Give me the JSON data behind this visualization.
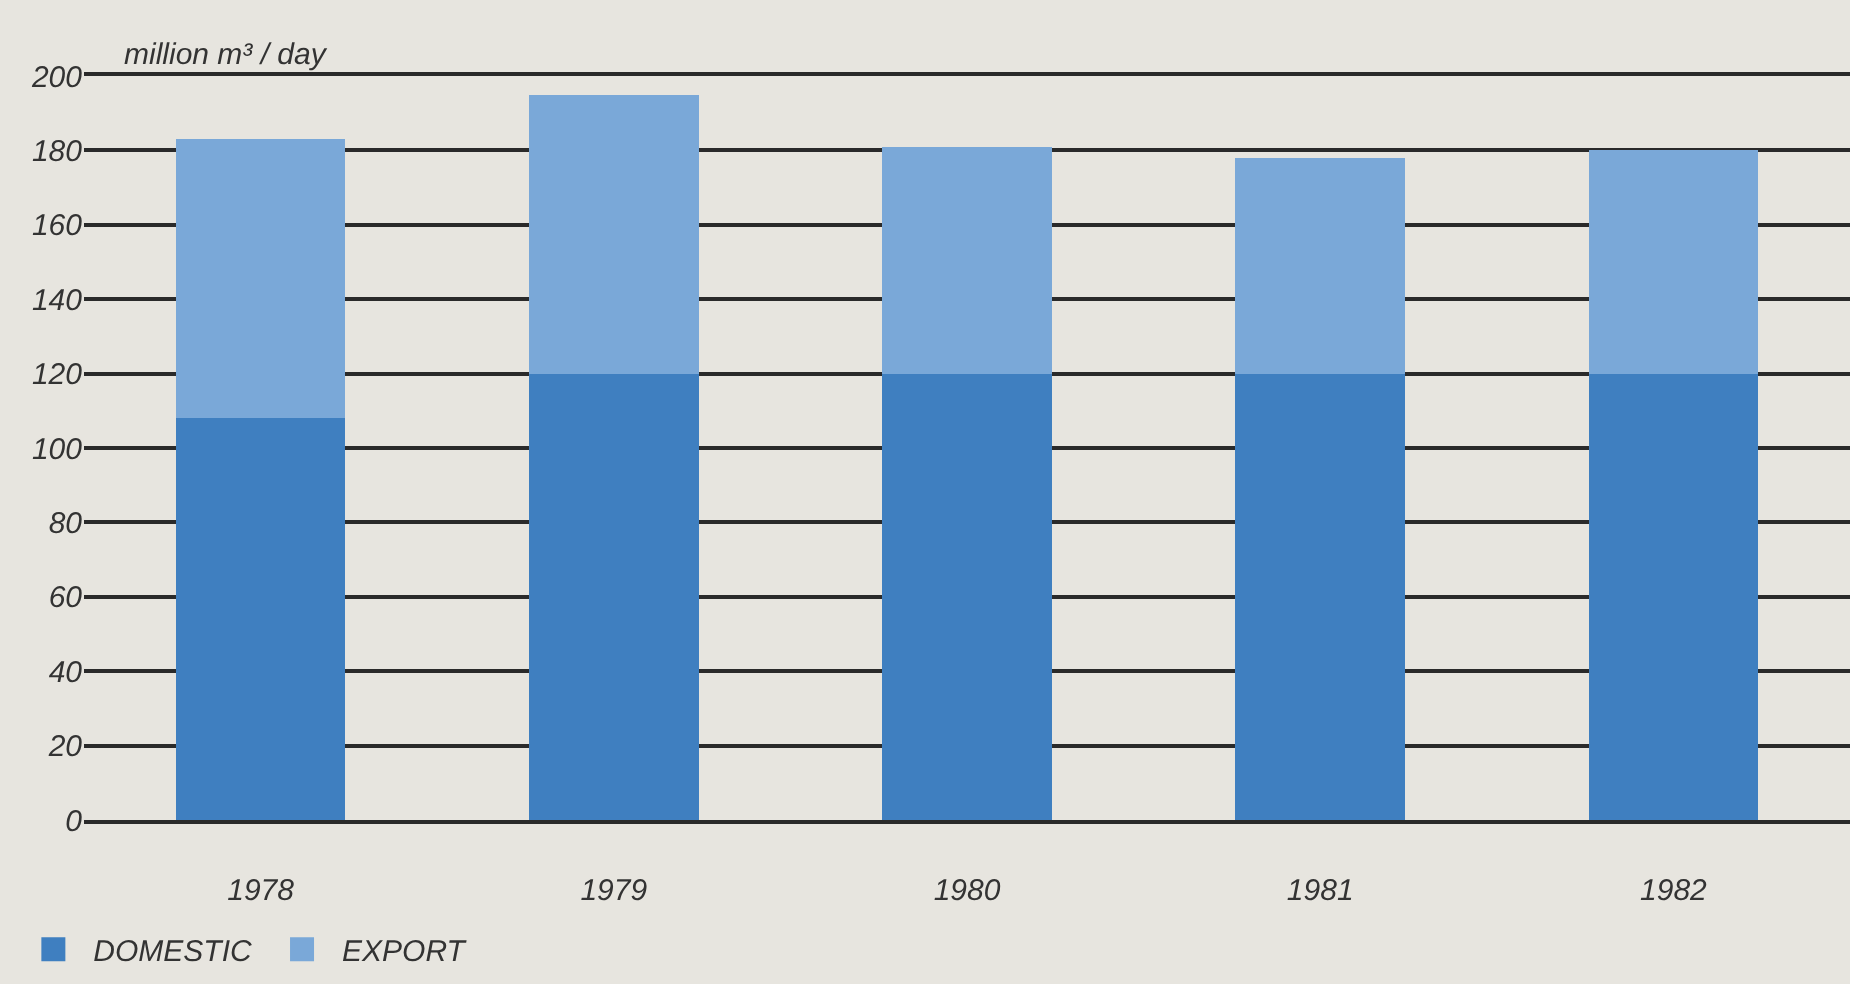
{
  "chart_data": {
    "type": "bar",
    "stacked": true,
    "ylabel": "million m³ / day",
    "categories": [
      "1978",
      "1979",
      "1980",
      "1981",
      "1982"
    ],
    "series": [
      {
        "name": "DOMESTIC",
        "color": "#3f7fc0",
        "values": [
          108,
          120,
          120,
          120,
          120
        ]
      },
      {
        "name": "EXPORT",
        "color": "#7aa8d8",
        "values": [
          75,
          75,
          61,
          58,
          60
        ]
      }
    ],
    "ylim": [
      0,
      200
    ],
    "yticks": [
      0,
      20,
      40,
      60,
      80,
      100,
      120,
      140,
      160,
      180,
      200
    ],
    "grid": "y",
    "legend": "bottom left"
  }
}
